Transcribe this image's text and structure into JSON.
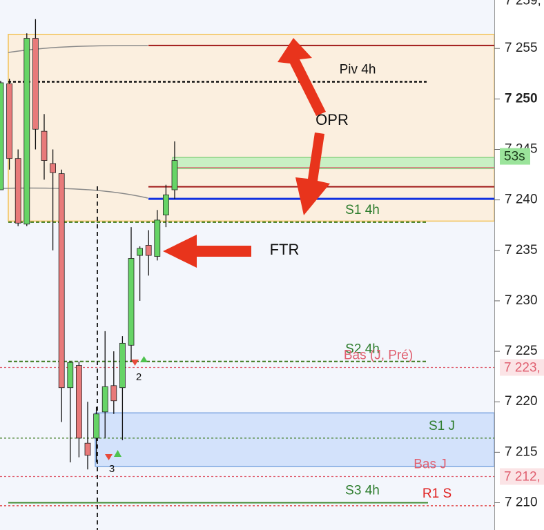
{
  "chart_data": {
    "type": "candlestick",
    "ylim": [
      7207.3,
      7259.8
    ],
    "yticks": [
      {
        "value": 7210,
        "label": "7 210"
      },
      {
        "value": 7215,
        "label": "7 215"
      },
      {
        "value": 7220,
        "label": "7 220"
      },
      {
        "value": 7225,
        "label": "7 225"
      },
      {
        "value": 7230,
        "label": "7 230"
      },
      {
        "value": 7235,
        "label": "7 235"
      },
      {
        "value": 7240,
        "label": "7 240"
      },
      {
        "value": 7245,
        "label": "7 245"
      },
      {
        "value": 7250,
        "label": "7 250"
      },
      {
        "value": 7255,
        "label": "7 255"
      }
    ],
    "up_color": "#66d466",
    "down_color": "#e87a7a",
    "open": [
      7241.0,
      7251.5,
      7244.1,
      7237.6,
      7256.0,
      7246.8,
      7243.6,
      7242.6,
      7221.4,
      7223.6,
      7215.9,
      7216.4,
      7219.0,
      7221.6,
      7221.4,
      7225.6,
      7234.5,
      7235.5,
      7234.4,
      7238.5,
      7241.0
    ],
    "high": [
      7251.8,
      7252.0,
      7245.0,
      7256.5,
      7257.9,
      7248.5,
      7245.0,
      7243.0,
      7224.0,
      7224.0,
      7220.0,
      7219.5,
      7227.0,
      7225.0,
      7226.5,
      7237.3,
      7235.4,
      7237.0,
      7239.0,
      7241.5,
      7245.8
    ],
    "low": [
      7241.0,
      7243.0,
      7237.4,
      7237.4,
      7245.0,
      7242.0,
      7235.0,
      7218.0,
      7214.0,
      7214.5,
      7213.3,
      7214.0,
      7216.4,
      7218.8,
      7216.2,
      7224.0,
      7230.0,
      7232.5,
      7234.0,
      7237.3,
      7240.1
    ],
    "close": [
      7251.6,
      7244.1,
      7237.7,
      7256.0,
      7247.0,
      7243.9,
      7242.7,
      7221.4,
      7223.9,
      7216.4,
      7214.7,
      7218.8,
      7221.5,
      7220.1,
      7225.8,
      7234.2,
      7235.2,
      7234.5,
      7238.0,
      7240.5,
      7243.9
    ],
    "zones": [
      {
        "top": 7256.4,
        "bottom": 7237.9,
        "color": "#fbefdf",
        "border": "#f2c35a"
      },
      {
        "top": 7244.2,
        "bottom": 7243.1,
        "color": "#c9f0c4",
        "border": "#8fd68a"
      },
      {
        "top": 7218.9,
        "bottom": 7213.6,
        "color": "#d3e2fb",
        "border": "#7aa5e0"
      }
    ],
    "levels": [
      {
        "name": "Piv 4h",
        "value": 7251.7,
        "color": "#111111",
        "label_color": "#111111",
        "style": "dotted"
      },
      {
        "name": "S1 4h",
        "value": 7237.8,
        "color": "#3d7a1f",
        "label_color": "#2e7d2e",
        "style": "dashed"
      },
      {
        "name": "S2 4h",
        "value": 7224.0,
        "color": "#3d7a1f",
        "label_color": "#2e7d2e",
        "style": "dashed"
      },
      {
        "name": "Bas (J, Pré)",
        "value": 7223.4,
        "color": "#e06070",
        "label_color": "#e06070",
        "style": "fine",
        "price_label": "7 223,"
      },
      {
        "name": "S1 J",
        "value": 7216.4,
        "color": "#3d7a1f",
        "label_color": "#2e7d2e",
        "style": "fine"
      },
      {
        "name": "Bas J",
        "value": 7212.6,
        "color": "#e06070",
        "label_color": "#e06070",
        "style": "fine",
        "price_label": "7 212,"
      },
      {
        "name": "S3 4h",
        "value": 7210.0,
        "color": "#3d8a2f",
        "label_color": "#2e7d2e",
        "style": "solid"
      },
      {
        "name": "R1 S",
        "value": 7209.7,
        "color": "#e03030",
        "label_color": "#e02020",
        "style": "fine"
      },
      {
        "value": 7255.3,
        "color": "#a01818",
        "style": "solid"
      },
      {
        "value": 7243.2,
        "color": "#e06070",
        "style": "solid"
      },
      {
        "value": 7241.3,
        "color": "#a01818",
        "style": "solid"
      },
      {
        "value": 7240.1,
        "color": "#1030e0",
        "style": "solid"
      }
    ],
    "top_price": {
      "value": 7259.7,
      "label": "7 259,"
    },
    "timer_label": "53s",
    "annotations": [
      "OPR",
      "FTR",
      "2",
      "3"
    ]
  }
}
